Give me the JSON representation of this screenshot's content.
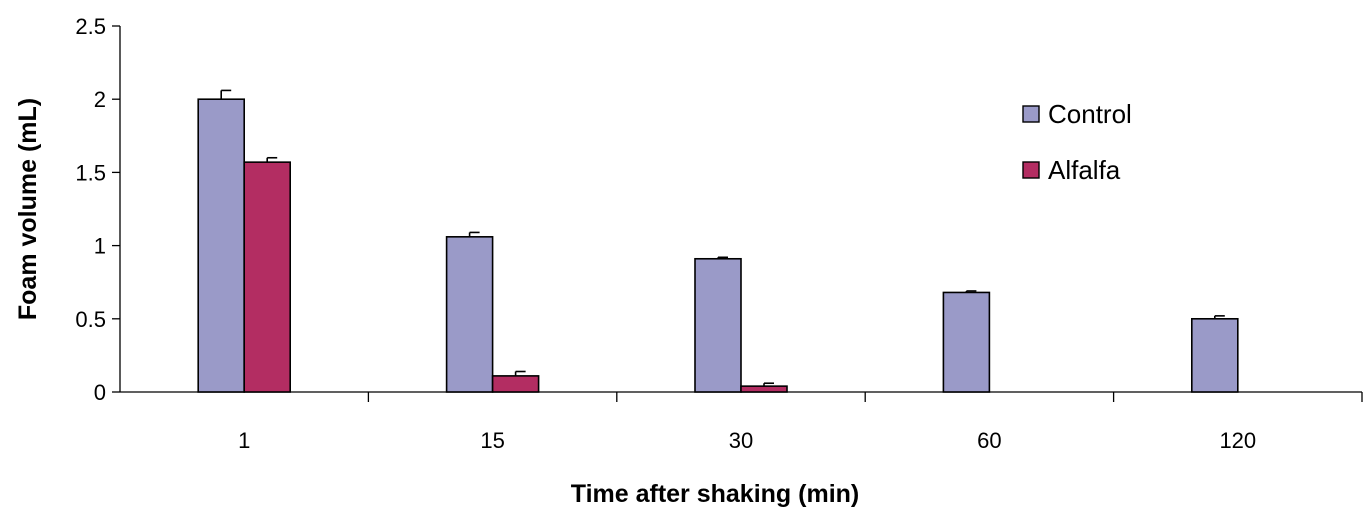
{
  "chart_data": {
    "type": "bar",
    "title": "",
    "xlabel": "Time after shaking (min)",
    "ylabel": "Foam volume (mL)",
    "categories": [
      "1",
      "15",
      "30",
      "60",
      "120"
    ],
    "ylim": [
      0,
      2.5
    ],
    "yticks": [
      0,
      0.5,
      1,
      1.5,
      2,
      2.5
    ],
    "ytick_labels": [
      "0",
      "0.5",
      "1",
      "1.5",
      "2",
      "2.5"
    ],
    "grid": false,
    "legend_position": "top-right",
    "series": [
      {
        "name": "Control",
        "color": "#9a9ac8",
        "values": [
          2.0,
          1.06,
          0.91,
          0.68,
          0.5
        ],
        "errors": [
          0.06,
          0.03,
          0.01,
          0.01,
          0.02
        ]
      },
      {
        "name": "Alfalfa",
        "color": "#b32d62",
        "values": [
          1.57,
          0.11,
          0.04,
          null,
          null
        ],
        "errors": [
          0.03,
          0.03,
          0.02,
          null,
          null
        ]
      }
    ]
  }
}
